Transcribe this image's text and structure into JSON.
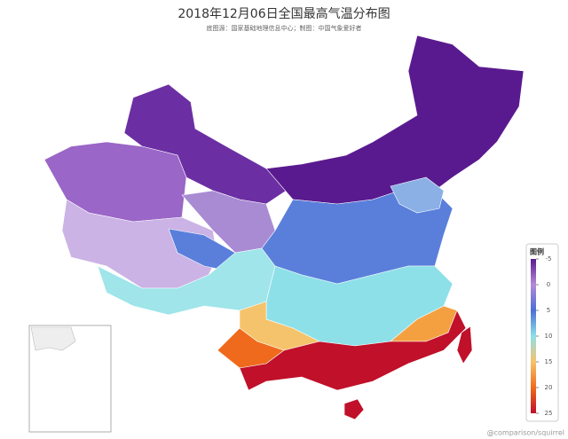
{
  "title": "2018年12月06日全国最高气温分布图",
  "subtitle": "底图源：国家基础地理信息中心；制图：中国气象爱好者",
  "legend": {
    "title": "图例",
    "ticks": [
      -5,
      0,
      5,
      10,
      15,
      20,
      25
    ],
    "lim": [
      -5,
      25
    ],
    "colors": [
      "#5a1a8f",
      "#b48ad6",
      "#4a6fd6",
      "#8ee0e8",
      "#f5c36b",
      "#ef6a1c",
      "#c0102a"
    ]
  },
  "watermark": "@comparison/squirrel"
}
